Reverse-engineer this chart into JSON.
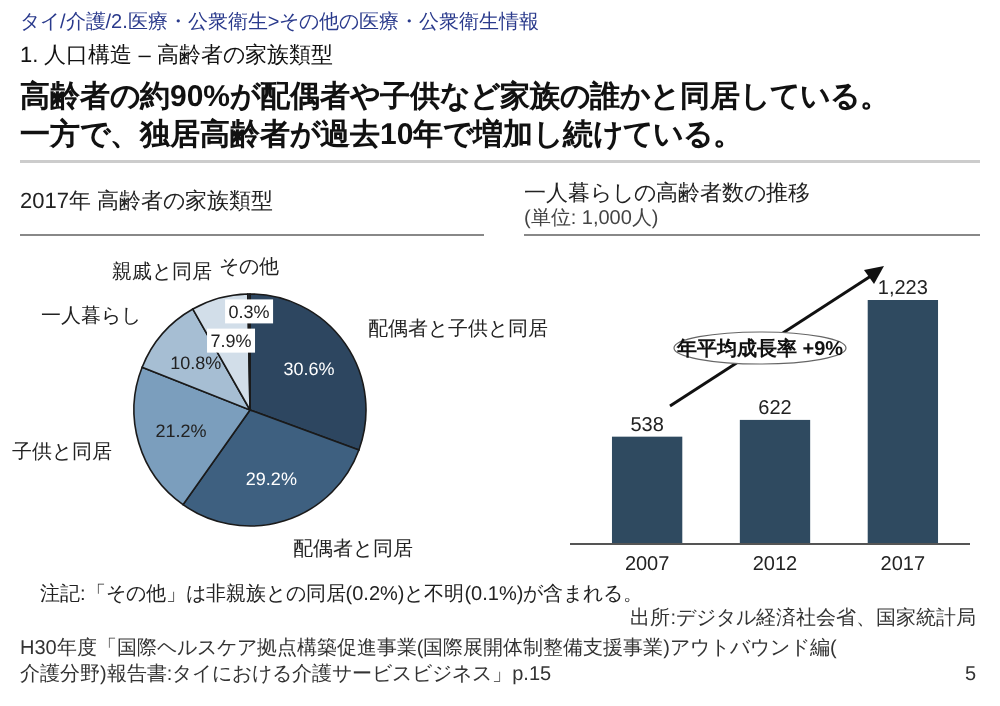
{
  "chart_data": [
    {
      "type": "pie",
      "title": "2017年 高齢者の家族類型",
      "categories": [
        "配偶者と子供と同居",
        "配偶者と同居",
        "子供と同居",
        "一人暮らし",
        "親戚と同居",
        "その他"
      ],
      "values": [
        30.6,
        29.2,
        21.2,
        10.8,
        7.9,
        0.3
      ],
      "value_labels": [
        "30.6%",
        "29.2%",
        "21.2%",
        "10.8%",
        "7.9%",
        "0.3%"
      ],
      "colors": [
        "#2d4660",
        "#3e6080",
        "#7b9ebd",
        "#a6bed3",
        "#d2dee9",
        "#33475c"
      ],
      "annotations": [
        "タイ/介護/2.医療・公衆衛生>その他の医療・公衆衛生情報",
        "1. 人口構造 – 高齢者の家族類型",
        "高齢者の約90%が配偶者や子供など家族の誰かと同居している。",
        "一方で、独居高齢者が過去10年で増加し続けている。",
        "注記:「その他」は非親族との同居(0.2%)と不明(0.1%)が含まれる。"
      ]
    },
    {
      "type": "bar",
      "title": "一人暮らしの高齢者数の推移",
      "subtitle": "(単位: 1,000人)",
      "categories": [
        "2007",
        "2012",
        "2017"
      ],
      "values": [
        538,
        622,
        1223
      ],
      "value_labels": [
        "538",
        "622",
        "1,223"
      ],
      "color": "#2f4a60",
      "annotations": [
        "年平均成長率 +9%",
        "出所:デジタル経済社会省、国家統計局",
        "H30年度「国際ヘルスケア拠点構築促進事業(国際展開体制整備支援事業)アウトバウンド編(介護分野)報告書:タイにおける介護サービスビジネス」p.15",
        "5"
      ]
    }
  ]
}
